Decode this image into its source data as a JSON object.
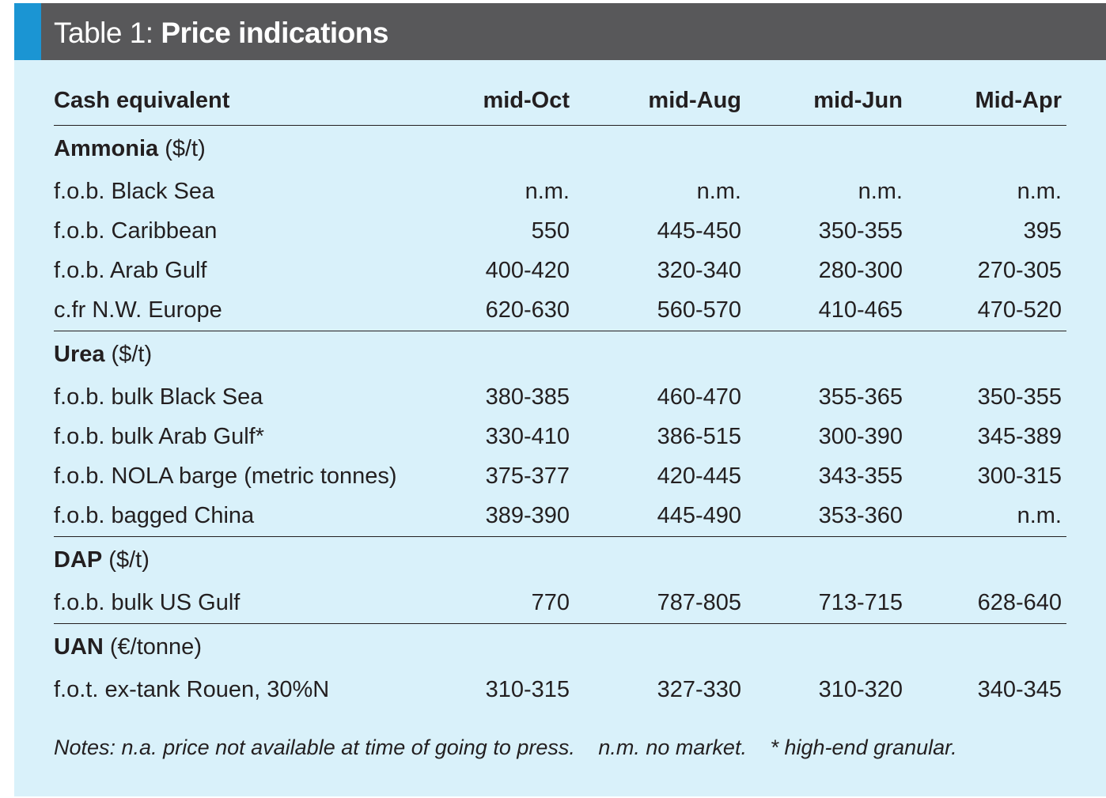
{
  "title": {
    "prefix": "Table 1: ",
    "main": "Price indications"
  },
  "columns": [
    "Cash equivalent",
    "mid-Oct",
    "mid-Aug",
    "mid-Jun",
    "Mid-Apr"
  ],
  "groups": [
    {
      "name": "Ammonia",
      "unit": " ($/t)",
      "rows": [
        {
          "label": "f.o.b. Black Sea",
          "values": [
            "n.m.",
            "n.m.",
            "n.m.",
            "n.m."
          ]
        },
        {
          "label": "f.o.b. Caribbean",
          "values": [
            "550",
            "445-450",
            "350-355",
            "395"
          ]
        },
        {
          "label": "f.o.b. Arab Gulf",
          "values": [
            "400-420",
            "320-340",
            "280-300",
            "270-305"
          ]
        },
        {
          "label": "c.fr N.W. Europe",
          "values": [
            "620-630",
            "560-570",
            "410-465",
            "470-520"
          ]
        }
      ]
    },
    {
      "name": "Urea",
      "unit": " ($/t)",
      "rows": [
        {
          "label": "f.o.b. bulk Black Sea",
          "values": [
            "380-385",
            "460-470",
            "355-365",
            "350-355"
          ]
        },
        {
          "label": "f.o.b. bulk Arab Gulf*",
          "values": [
            "330-410",
            "386-515",
            "300-390",
            "345-389"
          ]
        },
        {
          "label": "f.o.b. NOLA barge (metric tonnes)",
          "values": [
            "375-377",
            "420-445",
            "343-355",
            "300-315"
          ]
        },
        {
          "label": "f.o.b. bagged China",
          "values": [
            "389-390",
            "445-490",
            "353-360",
            "n.m."
          ]
        }
      ]
    },
    {
      "name": "DAP",
      "unit": " ($/t)",
      "rows": [
        {
          "label": "f.o.b. bulk US Gulf",
          "values": [
            "770",
            "787-805",
            "713-715",
            "628-640"
          ]
        }
      ]
    },
    {
      "name": "UAN",
      "unit": " (€/tonne)",
      "rows": [
        {
          "label": "f.o.t. ex-tank Rouen, 30%N",
          "values": [
            "310-315",
            "327-330",
            "310-320",
            "340-345"
          ]
        }
      ]
    }
  ],
  "notes": [
    "Notes: n.a. price not available at time of going to press.",
    "n.m. no market.",
    "* high-end granular."
  ],
  "colors": {
    "title_bar": "#58585a",
    "accent": "#1b95d3",
    "panel": "#d9f1fa",
    "text": "#231f20"
  }
}
